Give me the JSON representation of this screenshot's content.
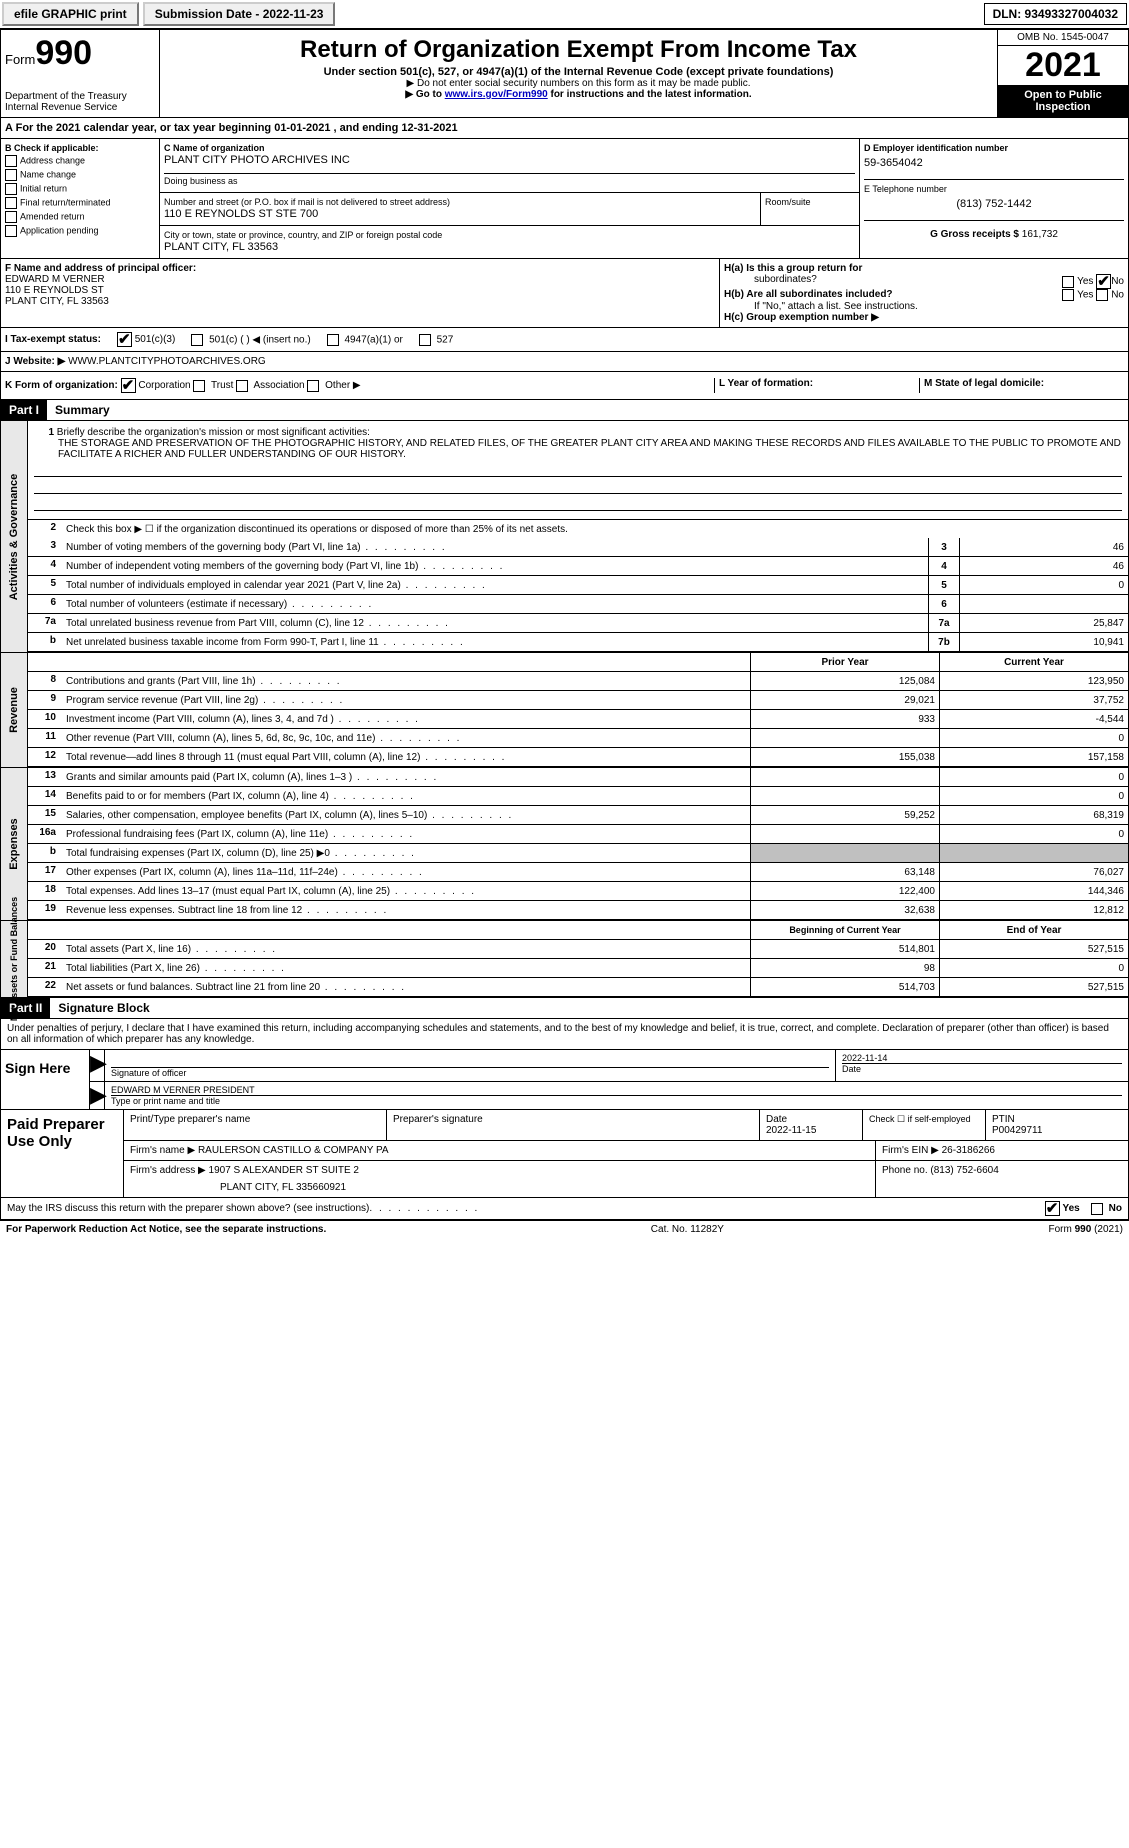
{
  "topbar": {
    "efile_label": "efile GRAPHIC print",
    "submission_label": "Submission Date - 2022-11-23",
    "dln_label": "DLN: 93493327004032"
  },
  "header": {
    "form_word": "Form",
    "form_number": "990",
    "dept": "Department of the Treasury",
    "irs": "Internal Revenue Service",
    "title": "Return of Organization Exempt From Income Tax",
    "subtitle": "Under section 501(c), 527, or 4947(a)(1) of the Internal Revenue Code (except private foundations)",
    "note1": "▶ Do not enter social security numbers on this form as it may be made public.",
    "note2_pre": "▶ Go to ",
    "note2_link": "www.irs.gov/Form990",
    "note2_post": " for instructions and the latest information.",
    "omb": "OMB No. 1545-0047",
    "year": "2021",
    "open_public": "Open to Public Inspection"
  },
  "line_a": "For the 2021 calendar year, or tax year beginning 01-01-2021    , and ending 12-31-2021",
  "section_b": {
    "label": "B Check if applicable:",
    "items": [
      "Address change",
      "Name change",
      "Initial return",
      "Final return/terminated",
      "Amended return",
      "Application pending"
    ]
  },
  "section_c": {
    "name_label": "C Name of organization",
    "name": "PLANT CITY PHOTO ARCHIVES INC",
    "dba_label": "Doing business as",
    "dba": "",
    "street_label": "Number and street (or P.O. box if mail is not delivered to street address)",
    "street": "110 E REYNOLDS ST STE 700",
    "room_label": "Room/suite",
    "city_label": "City or town, state or province, country, and ZIP or foreign postal code",
    "city": "PLANT CITY, FL  33563"
  },
  "section_d": {
    "ein_label": "D Employer identification number",
    "ein": "59-3654042",
    "phone_label": "E Telephone number",
    "phone": "(813) 752-1442",
    "gross_label": "G Gross receipts $",
    "gross": "161,732"
  },
  "section_f": {
    "label": "F  Name and address of principal officer:",
    "name": "EDWARD M VERNER",
    "street": "110 E REYNOLDS ST",
    "city": "PLANT CITY, FL  33563"
  },
  "section_h": {
    "a_label": "H(a)  Is this a group return for",
    "a_label2": "subordinates?",
    "b_label": "H(b)  Are all subordinates included?",
    "note": "If \"No,\" attach a list. See instructions.",
    "c_label": "H(c)  Group exemption number ▶"
  },
  "section_i": {
    "label": "I  Tax-exempt status:",
    "opt1": "501(c)(3)",
    "opt2": "501(c) (   ) ◀ (insert no.)",
    "opt3": "4947(a)(1) or",
    "opt4": "527"
  },
  "section_j": {
    "label": "J  Website: ▶",
    "value": "  WWW.PLANTCITYPHOTOARCHIVES.ORG"
  },
  "section_k": {
    "label": "K Form of organization:",
    "opts": [
      "Corporation",
      "Trust",
      "Association",
      "Other ▶"
    ]
  },
  "section_l": {
    "label": "L Year of formation:",
    "value": ""
  },
  "section_m": {
    "label": "M State of legal domicile:",
    "value": ""
  },
  "part1": {
    "header": "Part I",
    "title": "Summary",
    "side_tabs": [
      "Activities & Governance",
      "Revenue",
      "Expenses",
      "Net Assets or Fund Balances"
    ],
    "line1_label": "Briefly describe the organization's mission or most significant activities:",
    "mission": "THE STORAGE AND PRESERVATION OF THE PHOTOGRAPHIC HISTORY, AND RELATED FILES, OF THE GREATER PLANT CITY AREA AND MAKING THESE RECORDS AND FILES AVAILABLE TO THE PUBLIC TO PROMOTE AND FACILITATE A RICHER AND FULLER UNDERSTANDING OF OUR HISTORY.",
    "line2": "Check this box ▶ ☐  if the organization discontinued its operations or disposed of more than 25% of its net assets.",
    "rows_ag": [
      {
        "n": "3",
        "d": "Number of voting members of the governing body (Part VI, line 1a)",
        "box": "3",
        "v": "46"
      },
      {
        "n": "4",
        "d": "Number of independent voting members of the governing body (Part VI, line 1b)",
        "box": "4",
        "v": "46"
      },
      {
        "n": "5",
        "d": "Total number of individuals employed in calendar year 2021 (Part V, line 2a)",
        "box": "5",
        "v": "0"
      },
      {
        "n": "6",
        "d": "Total number of volunteers (estimate if necessary)",
        "box": "6",
        "v": ""
      },
      {
        "n": "7a",
        "d": "Total unrelated business revenue from Part VIII, column (C), line 12",
        "box": "7a",
        "v": "25,847"
      },
      {
        "n": "b",
        "d": "Net unrelated business taxable income from Form 990-T, Part I, line 11",
        "box": "7b",
        "v": "10,941"
      }
    ],
    "col_headers": {
      "prior": "Prior Year",
      "current": "Current Year"
    },
    "rows_rev": [
      {
        "n": "8",
        "d": "Contributions and grants (Part VIII, line 1h)",
        "p": "125,084",
        "c": "123,950"
      },
      {
        "n": "9",
        "d": "Program service revenue (Part VIII, line 2g)",
        "p": "29,021",
        "c": "37,752"
      },
      {
        "n": "10",
        "d": "Investment income (Part VIII, column (A), lines 3, 4, and 7d )",
        "p": "933",
        "c": "-4,544"
      },
      {
        "n": "11",
        "d": "Other revenue (Part VIII, column (A), lines 5, 6d, 8c, 9c, 10c, and 11e)",
        "p": "",
        "c": "0"
      },
      {
        "n": "12",
        "d": "Total revenue—add lines 8 through 11 (must equal Part VIII, column (A), line 12)",
        "p": "155,038",
        "c": "157,158"
      }
    ],
    "rows_exp": [
      {
        "n": "13",
        "d": "Grants and similar amounts paid (Part IX, column (A), lines 1–3 )",
        "p": "",
        "c": "0"
      },
      {
        "n": "14",
        "d": "Benefits paid to or for members (Part IX, column (A), line 4)",
        "p": "",
        "c": "0"
      },
      {
        "n": "15",
        "d": "Salaries, other compensation, employee benefits (Part IX, column (A), lines 5–10)",
        "p": "59,252",
        "c": "68,319"
      },
      {
        "n": "16a",
        "d": "Professional fundraising fees (Part IX, column (A), line 11e)",
        "p": "",
        "c": "0"
      },
      {
        "n": "b",
        "d": "Total fundraising expenses (Part IX, column (D), line 25) ▶0",
        "p": "SHADED",
        "c": "SHADED"
      },
      {
        "n": "17",
        "d": "Other expenses (Part IX, column (A), lines 11a–11d, 11f–24e)",
        "p": "63,148",
        "c": "76,027"
      },
      {
        "n": "18",
        "d": "Total expenses. Add lines 13–17 (must equal Part IX, column (A), line 25)",
        "p": "122,400",
        "c": "144,346"
      },
      {
        "n": "19",
        "d": "Revenue less expenses. Subtract line 18 from line 12",
        "p": "32,638",
        "c": "12,812"
      }
    ],
    "col_headers2": {
      "prior": "Beginning of Current Year",
      "current": "End of Year"
    },
    "rows_net": [
      {
        "n": "20",
        "d": "Total assets (Part X, line 16)",
        "p": "514,801",
        "c": "527,515"
      },
      {
        "n": "21",
        "d": "Total liabilities (Part X, line 26)",
        "p": "98",
        "c": "0"
      },
      {
        "n": "22",
        "d": "Net assets or fund balances. Subtract line 21 from line 20",
        "p": "514,703",
        "c": "527,515"
      }
    ]
  },
  "part2": {
    "header": "Part II",
    "title": "Signature Block",
    "declaration": "Under penalties of perjury, I declare that I have examined this return, including accompanying schedules and statements, and to the best of my knowledge and belief, it is true, correct, and complete. Declaration of preparer (other than officer) is based on all information of which preparer has any knowledge."
  },
  "sign": {
    "label": "Sign Here",
    "sig_officer": "Signature of officer",
    "date": "2022-11-14",
    "date_label": "Date",
    "name": "EDWARD M VERNER  PRESIDENT",
    "name_label": "Type or print name and title"
  },
  "paid": {
    "label": "Paid Preparer Use Only",
    "h1": "Print/Type preparer's name",
    "h2": "Preparer's signature",
    "h3": "Date",
    "date": "2022-11-15",
    "h4": "Check ☐ if self-employed",
    "h5": "PTIN",
    "ptin": "P00429711",
    "firm_label": "Firm's name    ▶",
    "firm": "RAULERSON CASTILLO & COMPANY PA",
    "ein_label": "Firm's EIN ▶",
    "ein": "26-3186266",
    "addr_label": "Firm's address ▶",
    "addr1": "1907 S ALEXANDER ST SUITE 2",
    "addr2": "PLANT CITY, FL  335660921",
    "phone_label": "Phone no.",
    "phone": "(813) 752-6604"
  },
  "discuss": {
    "text": "May the IRS discuss this return with the preparer shown above? (see instructions)",
    "yes": "Yes",
    "no": "No"
  },
  "footer": {
    "left": "For Paperwork Reduction Act Notice, see the separate instructions.",
    "center": "Cat. No. 11282Y",
    "right": "Form 990 (2021)"
  }
}
